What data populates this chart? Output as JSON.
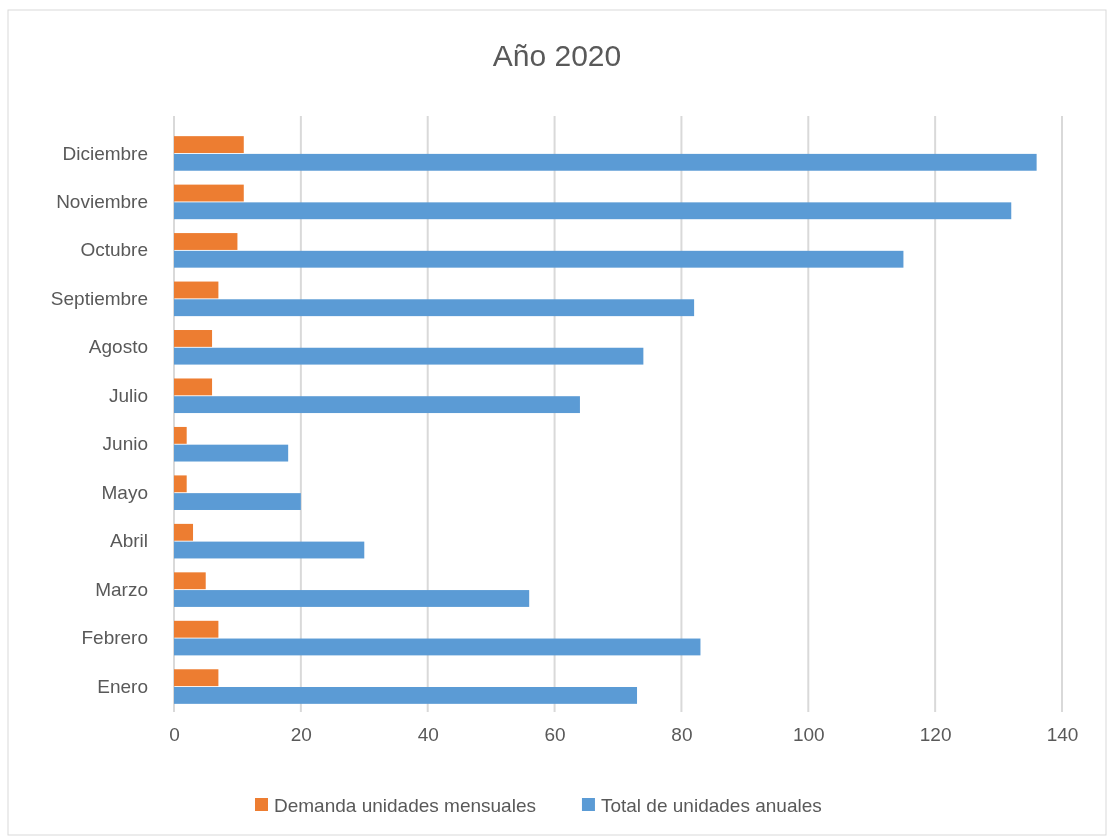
{
  "chart_data": {
    "type": "bar",
    "orientation": "horizontal",
    "title": "Año 2020",
    "categories": [
      "Diciembre",
      "Noviembre",
      "Octubre",
      "Septiembre",
      "Agosto",
      "Julio",
      "Junio",
      "Mayo",
      "Abril",
      "Marzo",
      "Febrero",
      "Enero"
    ],
    "series": [
      {
        "name": "Demanda unidades mensuales",
        "color": "#ed7d31",
        "values": [
          11,
          11,
          10,
          7,
          6,
          6,
          2,
          2,
          3,
          5,
          7,
          7
        ]
      },
      {
        "name": "Total de unidades anuales",
        "color": "#5b9bd5",
        "values": [
          136,
          132,
          115,
          82,
          74,
          64,
          18,
          20,
          30,
          56,
          83,
          73
        ]
      }
    ],
    "xlim": [
      0,
      140
    ],
    "xticks": [
      0,
      20,
      40,
      60,
      80,
      100,
      120,
      140
    ],
    "grid": "x",
    "legend": "bottom"
  }
}
